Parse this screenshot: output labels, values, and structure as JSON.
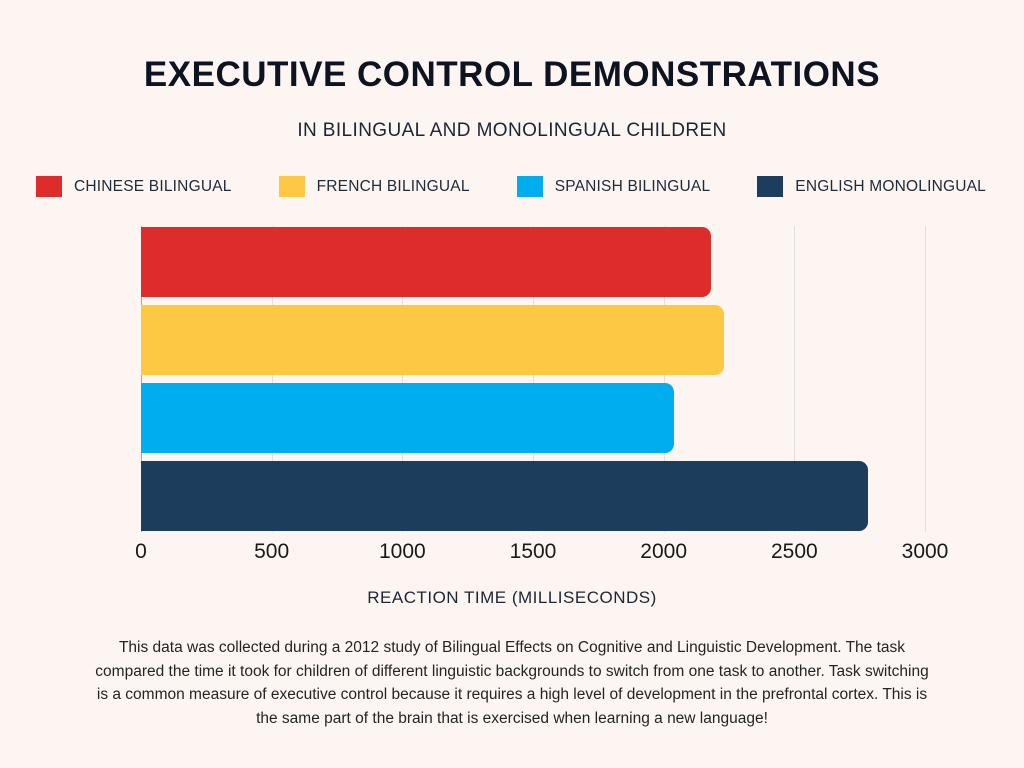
{
  "page": {
    "background": "#fcf5f2",
    "title": "EXECUTIVE CONTROL DEMONSTRATIONS",
    "subtitle": "IN BILINGUAL AND MONOLINGUAL CHILDREN",
    "footer": "This data was collected during a 2012 study of Bilingual Effects on Cognitive and Linguistic Development. The task compared the time it took for children of different linguistic backgrounds to switch from one task to another. Task switching is a common measure of executive control because it requires a high level of development in the prefrontal cortex. This is the same part of the brain that is exercised when learning a new language!"
  },
  "chart_data": {
    "type": "bar",
    "orientation": "horizontal",
    "title": "EXECUTIVE CONTROL DEMONSTRATIONS",
    "subtitle": "IN BILINGUAL AND MONOLINGUAL CHILDREN",
    "xlabel": "REACTION TIME (MILLISECONDS)",
    "xlim": [
      0,
      3000
    ],
    "xticks": [
      0,
      500,
      1000,
      1500,
      2000,
      2500,
      3000
    ],
    "grid": true,
    "legend_position": "top",
    "categories": [
      "CHINESE BILINGUAL",
      "FRENCH BILINGUAL",
      "SPANISH BILINGUAL",
      "ENGLISH MONOLINGUAL"
    ],
    "values": [
      2180,
      2230,
      2040,
      2780
    ],
    "colors": [
      "#de2c2c",
      "#fdc843",
      "#00aeef",
      "#1d3d5d"
    ]
  }
}
